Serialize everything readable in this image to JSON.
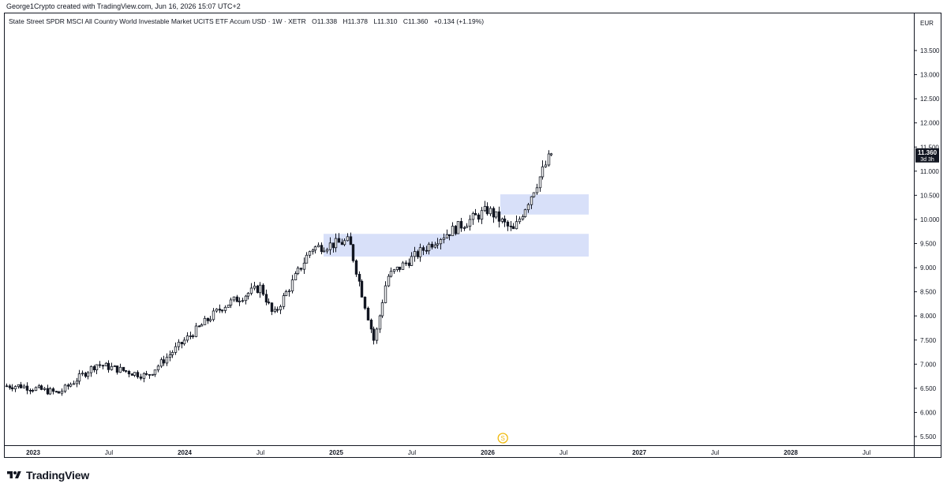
{
  "header": {
    "credit": "George1Crypto created with TradingView.com, Jun 16, 2026 15:07 UTC+2"
  },
  "legend": {
    "symbol": "State Street SPDR MSCI All Country World Investable Market UCITS ETF Accum USD · 1W · XETR",
    "open": "O11.338",
    "high": "H11.378",
    "low": "L11.310",
    "close": "C11.360",
    "change": "+0.134 (+1.19%)"
  },
  "price_scale": {
    "currency": "EUR",
    "last_price": "11.360",
    "countdown": "3d 3h"
  },
  "brand": {
    "name": "TradingView"
  },
  "marker": {
    "label": "S"
  },
  "colors": {
    "candle": "#131722",
    "zone_fill": "#d6def9",
    "marker": "#f0b90b",
    "last_price_bg": "#131722"
  },
  "chart_data": {
    "type": "candlestick",
    "timeframe": "1W",
    "ylim": [
      5.3,
      13.9
    ],
    "y_ticks": [
      "5.500",
      "6.000",
      "6.500",
      "7.000",
      "7.500",
      "8.000",
      "8.500",
      "9.000",
      "9.500",
      "10.000",
      "10.500",
      "11.000",
      "11.500",
      "12.000",
      "12.500",
      "13.000",
      "13.500"
    ],
    "x_ticks": [
      "2023",
      "Jul",
      "2024",
      "Jul",
      "2025",
      "Jul",
      "2026",
      "Jul",
      "2027",
      "Jul",
      "2028",
      "Jul"
    ],
    "key_points": [
      {
        "date": "2022-12",
        "close": 6.55
      },
      {
        "date": "2023-03",
        "close": 6.4
      },
      {
        "date": "2023-06",
        "close": 7.0
      },
      {
        "date": "2023-10",
        "close": 6.75
      },
      {
        "date": "2024-01",
        "close": 7.5
      },
      {
        "date": "2024-04",
        "close": 8.2
      },
      {
        "date": "2024-07",
        "close": 8.6
      },
      {
        "date": "2024-08",
        "close": 8.0
      },
      {
        "date": "2024-11",
        "close": 9.4
      },
      {
        "date": "2025-02",
        "close": 9.55
      },
      {
        "date": "2025-04",
        "close": 7.45
      },
      {
        "date": "2025-05",
        "close": 8.8
      },
      {
        "date": "2025-09",
        "close": 9.6
      },
      {
        "date": "2026-01",
        "close": 10.2
      },
      {
        "date": "2026-03",
        "close": 9.75
      },
      {
        "date": "2026-06",
        "close": 11.36
      }
    ],
    "zones": [
      {
        "from": "2024-12",
        "to": "2026-09",
        "low": 9.23,
        "high": 9.7
      },
      {
        "from": "2026-02",
        "to": "2026-09",
        "low": 10.1,
        "high": 10.52
      }
    ],
    "last": {
      "open": 11.338,
      "high": 11.378,
      "low": 11.31,
      "close": 11.36
    }
  }
}
